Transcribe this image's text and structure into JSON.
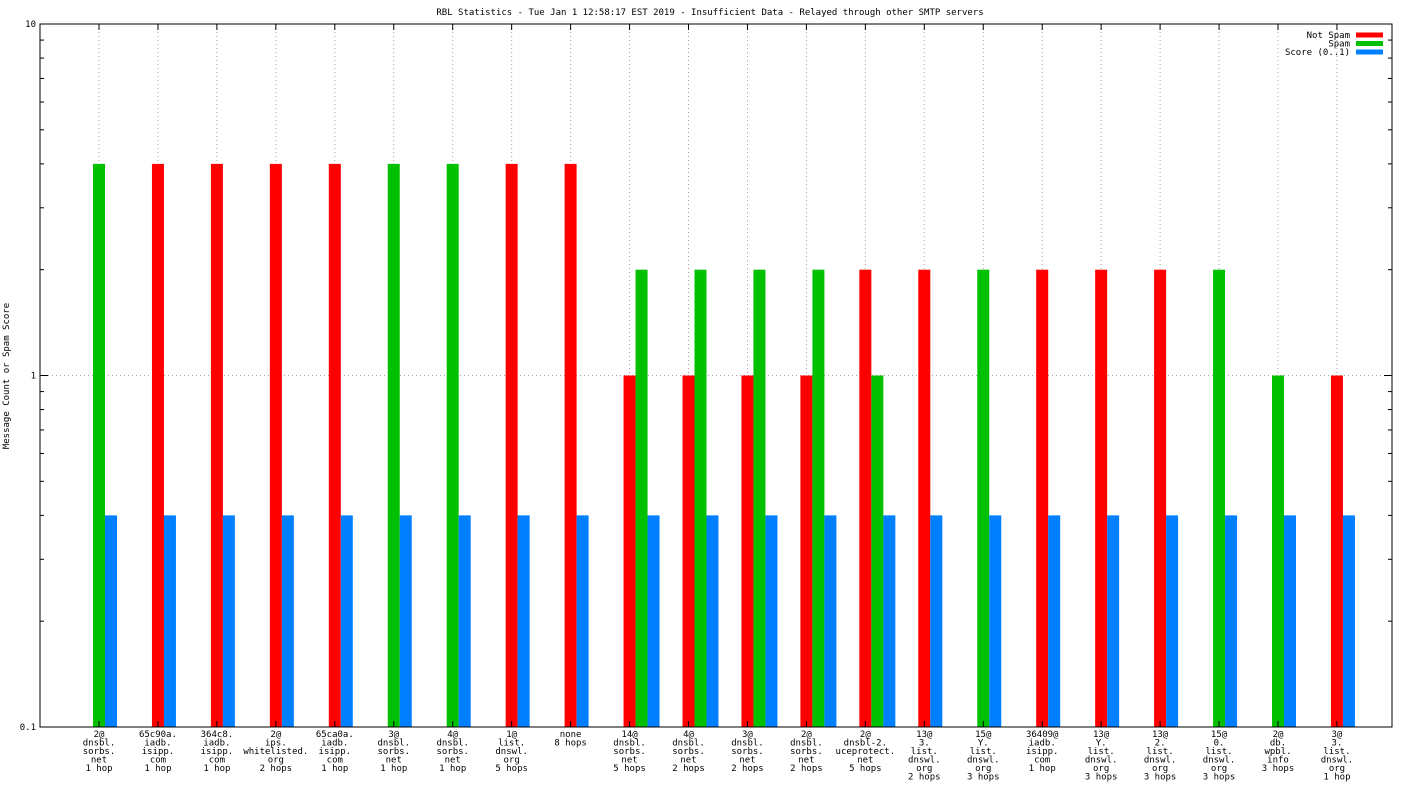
{
  "chart_data": {
    "type": "bar",
    "title": "RBL Statistics - Tue Jan  1 12:58:17 EST 2019 - Insufficient Data - Relayed through other SMTP servers",
    "xlabel": "",
    "ylabel": "Message Count or Spam Score",
    "yscale": "log",
    "ylim": [
      0.1,
      10
    ],
    "yticks": [
      "10",
      "1",
      "0.1"
    ],
    "grid": "dotted",
    "legend_position": "top-right",
    "categories": [
      [
        "2@",
        "dnsbl.",
        "sorbs.",
        "net",
        "1 hop"
      ],
      [
        "65c90a.",
        "iadb.",
        "isipp.",
        "com",
        "1 hop"
      ],
      [
        "364c8.",
        "iadb.",
        "isipp.",
        "com",
        "1 hop"
      ],
      [
        "2@",
        "ips.",
        "whitelisted.",
        "org",
        "2 hops"
      ],
      [
        "65ca0a.",
        "iadb.",
        "isipp.",
        "com",
        "1 hop"
      ],
      [
        "3@",
        "dnsbl.",
        "sorbs.",
        "net",
        "1 hop"
      ],
      [
        "4@",
        "dnsbl.",
        "sorbs.",
        "net",
        "1 hop"
      ],
      [
        "1@",
        "list.",
        "dnswl.",
        "org",
        "5 hops"
      ],
      [
        "none",
        "8 hops"
      ],
      [
        "14@",
        "dnsbl.",
        "sorbs.",
        "net",
        "5 hops"
      ],
      [
        "4@",
        "dnsbl.",
        "sorbs.",
        "net",
        "2 hops"
      ],
      [
        "3@",
        "dnsbl.",
        "sorbs.",
        "net",
        "2 hops"
      ],
      [
        "2@",
        "dnsbl.",
        "sorbs.",
        "net",
        "2 hops"
      ],
      [
        "2@",
        "dnsbl-2.",
        "uceprotect.",
        "net",
        "5 hops"
      ],
      [
        "13@",
        "3.",
        "list.",
        "dnswl.",
        "org",
        "2 hops"
      ],
      [
        "15@",
        "Y.",
        "list.",
        "dnswl.",
        "org",
        "3 hops"
      ],
      [
        "36409@",
        "iadb.",
        "isipp.",
        "com",
        "1 hop"
      ],
      [
        "13@",
        "Y.",
        "list.",
        "dnswl.",
        "org",
        "3 hops"
      ],
      [
        "13@",
        "2.",
        "list.",
        "dnswl.",
        "org",
        "3 hops"
      ],
      [
        "15@",
        "0.",
        "list.",
        "dnswl.",
        "org",
        "3 hops"
      ],
      [
        "2@",
        "db.",
        "wpbl.",
        "info",
        "3 hops"
      ],
      [
        "3@",
        "3.",
        "list.",
        "dnswl.",
        "org",
        "1 hop"
      ]
    ],
    "series": [
      {
        "name": "Not Spam",
        "color": "#ff0000",
        "values": [
          null,
          4,
          4,
          4,
          4,
          null,
          null,
          4,
          4,
          1,
          1,
          1,
          1,
          2,
          2,
          null,
          2,
          2,
          2,
          null,
          null,
          1
        ]
      },
      {
        "name": "Spam",
        "color": "#00c000",
        "values": [
          4,
          null,
          null,
          null,
          null,
          4,
          4,
          null,
          null,
          2,
          2,
          2,
          2,
          1,
          null,
          2,
          null,
          null,
          null,
          2,
          1,
          null
        ]
      },
      {
        "name": "Score (0..1)",
        "color": "#0080ff",
        "values": [
          0.4,
          0.4,
          0.4,
          0.4,
          0.4,
          0.4,
          0.4,
          0.4,
          0.4,
          0.4,
          0.4,
          0.4,
          0.4,
          0.4,
          0.4,
          0.4,
          0.4,
          0.4,
          0.4,
          0.4,
          0.4,
          0.4
        ]
      }
    ]
  }
}
